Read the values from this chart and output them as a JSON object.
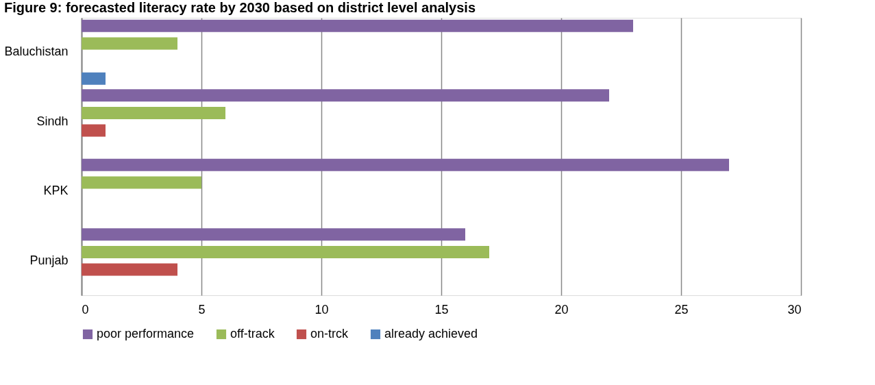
{
  "chart_data": {
    "type": "bar",
    "orientation": "horizontal",
    "title": "Figure 9: forecasted literacy rate by 2030 based on district level analysis",
    "categories": [
      "Baluchistan",
      "Sindh",
      "KPK",
      "Punjab"
    ],
    "series": [
      {
        "name": "poor performance",
        "color": "#8064a2",
        "values": [
          23,
          22,
          27,
          16
        ]
      },
      {
        "name": "off-track",
        "color": "#9bbb59",
        "values": [
          4,
          6,
          5,
          17
        ]
      },
      {
        "name": "on-trck",
        "color": "#c0504d",
        "values": [
          null,
          1,
          null,
          4
        ]
      },
      {
        "name": "already achieved",
        "color": "#4f81bd",
        "values": [
          1,
          null,
          null,
          null
        ]
      }
    ],
    "xlim": [
      0,
      30
    ],
    "xticks": [
      0,
      5,
      10,
      15,
      20,
      25,
      30
    ],
    "grid": "x",
    "legend": "bottom"
  }
}
